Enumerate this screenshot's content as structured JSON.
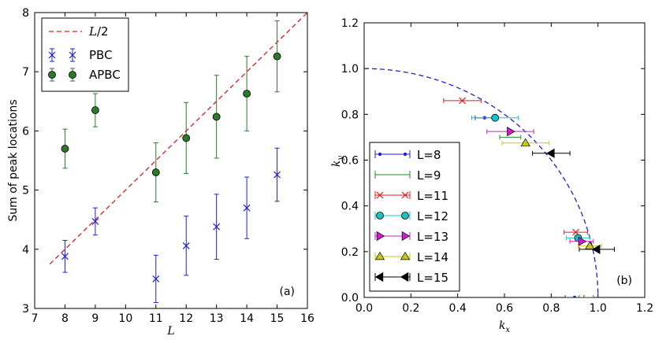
{
  "chart_data": [
    {
      "panel": "(a)",
      "type": "scatter",
      "xlabel": "L",
      "ylabel": "Sum of peak locations",
      "xlim": [
        7,
        16
      ],
      "ylim": [
        3,
        8
      ],
      "xticks": [
        7,
        8,
        9,
        10,
        11,
        12,
        13,
        14,
        15,
        16
      ],
      "yticks": [
        3,
        4,
        5,
        6,
        7,
        8
      ],
      "panel_label": "(a)",
      "legend_position": "top-left",
      "reference_line": {
        "name": "L/2",
        "label_prefix": "L",
        "label_suffix": "/2",
        "x": [
          7.5,
          16
        ],
        "y": [
          3.75,
          8.0
        ],
        "color": "#e31a1c"
      },
      "series": [
        {
          "name": "PBC",
          "marker": "x",
          "color": "#1f1fd6",
          "x": [
            8,
            9,
            11,
            12,
            13,
            14,
            15
          ],
          "y": [
            3.88,
            4.47,
            3.5,
            4.06,
            4.38,
            4.7,
            5.26
          ],
          "err": [
            0.27,
            0.23,
            0.4,
            0.5,
            0.55,
            0.52,
            0.45
          ]
        },
        {
          "name": "APBC",
          "marker": "o",
          "color": "#2a7a2a",
          "x": [
            8,
            9,
            11,
            12,
            13,
            14,
            15
          ],
          "y": [
            5.7,
            6.35,
            5.3,
            5.88,
            6.24,
            6.63,
            7.26
          ],
          "err": [
            0.33,
            0.28,
            0.5,
            0.6,
            0.7,
            0.63,
            0.6
          ]
        }
      ]
    },
    {
      "panel": "(b)",
      "type": "scatter",
      "xlabel": "k_x",
      "ylabel": "k_y",
      "xlabel_base": "k",
      "xlabel_sub": "x",
      "ylabel_base": "k",
      "ylabel_sub": "y",
      "xlim": [
        0.0,
        1.2
      ],
      "ylim": [
        0.0,
        1.2
      ],
      "xticks": [
        "0.0",
        "0.2",
        "0.4",
        "0.6",
        "0.8",
        "1.0",
        "1.2"
      ],
      "yticks": [
        "0.0",
        "0.2",
        "0.4",
        "0.6",
        "0.8",
        "1.0",
        "1.2"
      ],
      "panel_label": "(b)",
      "legend_position": "lower-left",
      "reference_curve": {
        "name": "unit circle k_x^2 + k_y^2 = 1",
        "style": "dashed",
        "color": "#1f1fd6"
      },
      "series": [
        {
          "name": "L=8",
          "marker": "dot",
          "color": "#1f1fd6",
          "points": [
            {
              "x": 0.515,
              "y": 0.785,
              "xerr": 0.04
            },
            {
              "x": 0.9,
              "y": 0.0,
              "xerr": 0.04
            }
          ]
        },
        {
          "name": "L=9",
          "marker": "none",
          "color": "#2a8a2a",
          "points": [
            {
              "x": 0.625,
              "y": 0.7,
              "xerr": 0.045
            },
            {
              "x": 0.95,
              "y": 0.0,
              "xerr": 0.03
            }
          ]
        },
        {
          "name": "L=11",
          "marker": "x",
          "color": "#e31a1c",
          "points": [
            {
              "x": 0.42,
              "y": 0.86,
              "xerr": 0.08
            },
            {
              "x": 0.905,
              "y": 0.285,
              "xerr": 0.05
            }
          ]
        },
        {
          "name": "L=12",
          "marker": "circle",
          "color": "#17c3c3",
          "points": [
            {
              "x": 0.56,
              "y": 0.785,
              "xerr": 0.1
            },
            {
              "x": 0.915,
              "y": 0.26,
              "xerr": 0.05
            }
          ]
        },
        {
          "name": "L=13",
          "marker": "tri-right",
          "color": "#c91fc9",
          "points": [
            {
              "x": 0.625,
              "y": 0.725,
              "xerr": 0.1
            },
            {
              "x": 0.93,
              "y": 0.245,
              "xerr": 0.05
            }
          ]
        },
        {
          "name": "L=14",
          "marker": "tri-up",
          "color": "#c8c81a",
          "points": [
            {
              "x": 0.69,
              "y": 0.675,
              "xerr": 0.1
            },
            {
              "x": 0.965,
              "y": 0.225,
              "xerr": 0.05
            }
          ]
        },
        {
          "name": "L=15",
          "marker": "tri-left",
          "color": "#000000",
          "points": [
            {
              "x": 0.8,
              "y": 0.63,
              "xerr": 0.08
            },
            {
              "x": 0.995,
              "y": 0.21,
              "xerr": 0.075
            }
          ]
        }
      ]
    }
  ]
}
